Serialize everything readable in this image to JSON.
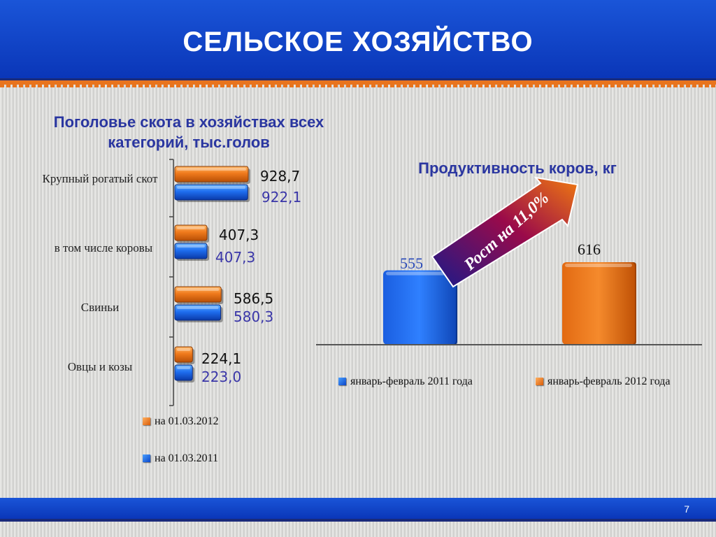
{
  "header": {
    "title": "СЕЛЬСКОЕ ХОЗЯЙСТВО"
  },
  "footer": {
    "page_number": "7"
  },
  "chart_data": [
    {
      "type": "bar",
      "orientation": "horizontal",
      "title": "Поголовье скота в хозяйствах всех категорий, тыс.голов",
      "categories": [
        "Крупный рогатый скот",
        "в том числе коровы",
        "Свиньи",
        "Овцы и козы"
      ],
      "series": [
        {
          "name": "на 01.03.2012",
          "color": "#e8741e",
          "values": [
            928.7,
            407.3,
            586.5,
            224.1
          ],
          "labels": [
            "928,7",
            "407,3",
            "586,5",
            "224,1"
          ]
        },
        {
          "name": "на 01.03.2011",
          "color": "#1f6ef0",
          "values": [
            922.1,
            407.3,
            580.3,
            223.0
          ],
          "labels": [
            "922,1",
            "407,3",
            "580,3",
            "223,0"
          ]
        }
      ],
      "legend_position": "bottom-left",
      "grid": false
    },
    {
      "type": "bar",
      "title": "Продуктивность коров, кг",
      "categories": [
        "январь-февраль 2011 года",
        "январь-февраль 2012 года"
      ],
      "values": [
        555,
        616
      ],
      "labels": [
        "555",
        "616"
      ],
      "colors": [
        "#1f6ef0",
        "#e8741e"
      ],
      "annotation": "Рост на 11,0%",
      "legend_position": "bottom",
      "grid": false
    }
  ]
}
